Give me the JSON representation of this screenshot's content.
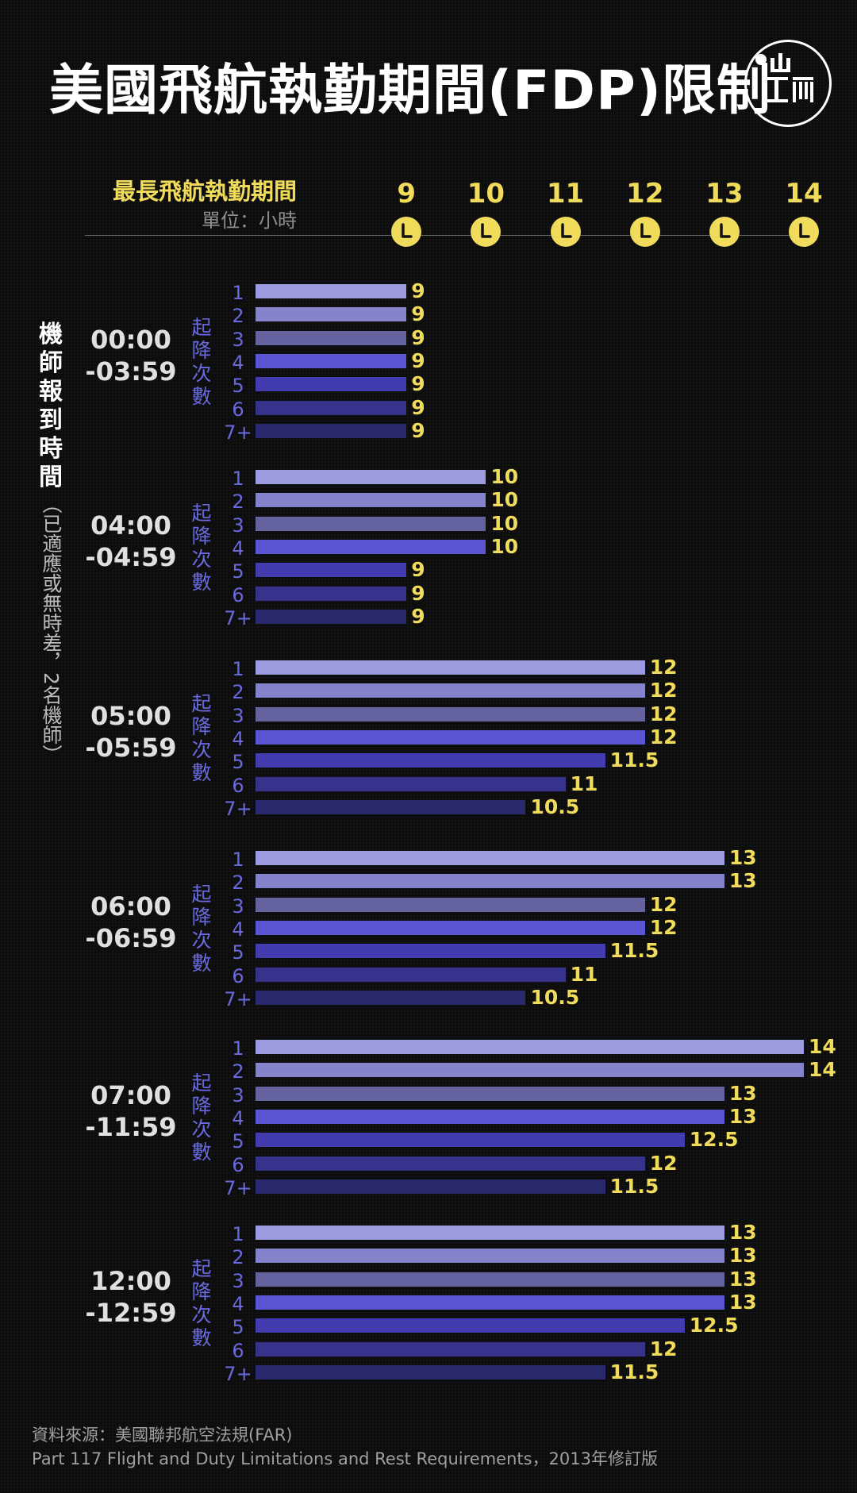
{
  "title": "美國飛航執勤期間(FDP)限制",
  "logo_text": "端",
  "header": {
    "title": "最長飛航執勤期間",
    "unit": "單位：小時"
  },
  "yaxis": {
    "title": "機師報到時間",
    "subtitle": "（已適應或無時差，2名機師）"
  },
  "group_vlabel": "起降次數",
  "footer": {
    "source": "資料來源：美國聯邦航空法規(FAR)",
    "ref": "Part 117  Flight and Duty Limitations and Rest Requirements，2013年修訂版"
  },
  "colors": {
    "accent_yellow": "#f0dc5a",
    "label_purple": "#6a6ae0",
    "bar_colors": [
      "#9d9be0",
      "#8583cc",
      "#65639f",
      "#5b55d2",
      "#423cb0",
      "#37338c",
      "#2b2a6e"
    ]
  },
  "chart_data": {
    "type": "bar",
    "orientation": "horizontal",
    "title": "最長飛航執勤期間",
    "unit": "單位：小時",
    "x_ticks": [
      9,
      10,
      11,
      12,
      13,
      14
    ],
    "xlim": [
      7.1,
      14
    ],
    "categories": [
      "1",
      "2",
      "3",
      "4",
      "5",
      "6",
      "7+"
    ],
    "groups": [
      {
        "time_start": "00:00",
        "time_end": "-03:59",
        "values": [
          9,
          9,
          9,
          9,
          9,
          9,
          9
        ]
      },
      {
        "time_start": "04:00",
        "time_end": "-04:59",
        "values": [
          10,
          10,
          10,
          10,
          9,
          9,
          9
        ]
      },
      {
        "time_start": "05:00",
        "time_end": "-05:59",
        "values": [
          12,
          12,
          12,
          12,
          11.5,
          11,
          10.5
        ]
      },
      {
        "time_start": "06:00",
        "time_end": "-06:59",
        "values": [
          13,
          13,
          12,
          12,
          11.5,
          11,
          10.5
        ]
      },
      {
        "time_start": "07:00",
        "time_end": "-11:59",
        "values": [
          14,
          14,
          13,
          13,
          12.5,
          12,
          11.5
        ]
      },
      {
        "time_start": "12:00",
        "time_end": "-12:59",
        "values": [
          13,
          13,
          13,
          13,
          12.5,
          12,
          11.5
        ]
      }
    ]
  }
}
